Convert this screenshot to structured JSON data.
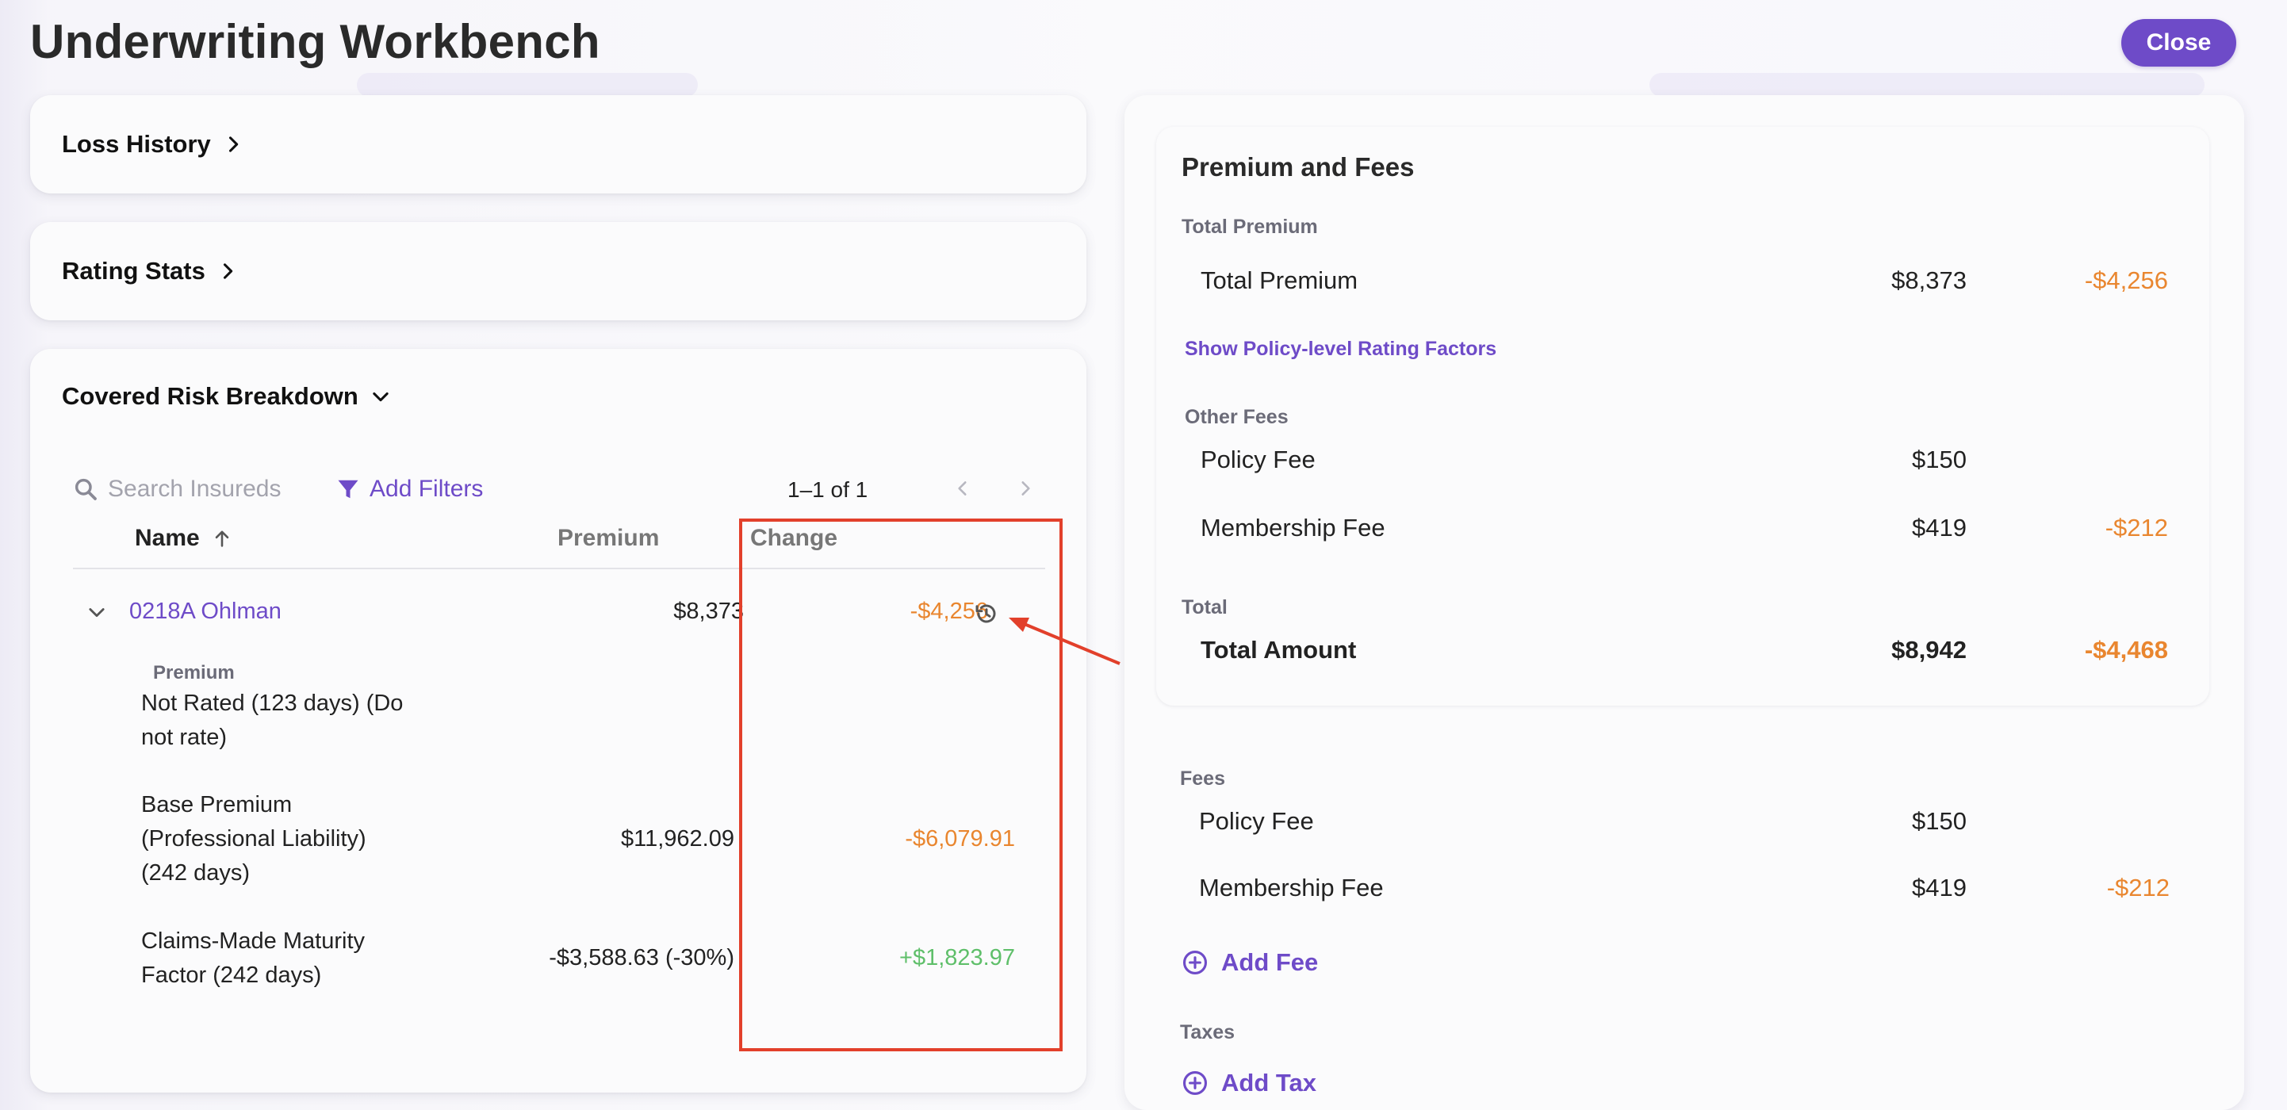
{
  "page": {
    "title": "Underwriting Workbench",
    "close_label": "Close"
  },
  "colors": {
    "accent": "#6e4bc8",
    "negative_change": "#e9862f",
    "positive_change": "#5fbf6a",
    "highlight": "#e2402b"
  },
  "left": {
    "loss_history": {
      "label": "Loss History",
      "icon": "chevron-right-icon"
    },
    "rating_stats": {
      "label": "Rating Stats",
      "icon": "chevron-right-icon"
    },
    "covered_risk": {
      "label": "Covered Risk Breakdown",
      "icon": "chevron-down-icon",
      "search_placeholder": "Search Insureds",
      "add_filters_label": "Add Filters",
      "pager_text": "1–1 of 1",
      "columns": {
        "name": "Name",
        "premium": "Premium",
        "change": "Change"
      },
      "row": {
        "name": "0218A Ohlman",
        "premium": "$8,373",
        "change": "-$4,256"
      },
      "section_label": "Premium",
      "details": [
        {
          "line1": "Not Rated (123 days) (Do",
          "line2": "not rate)",
          "line3": "",
          "premium": "",
          "change": ""
        },
        {
          "line1": "Base Premium",
          "line2": "(Professional Liability)",
          "line3": "(242 days)",
          "premium": "$11,962.09",
          "change": "-$6,079.91"
        },
        {
          "line1": "Claims-Made Maturity",
          "line2": "Factor (242 days)",
          "line3": "",
          "premium": "-$3,588.63 (-30%)",
          "change": "+$1,823.97"
        }
      ]
    }
  },
  "right": {
    "title": "Premium and Fees",
    "total_premium_label": "Total Premium",
    "total_premium": {
      "name": "Total Premium",
      "value": "$8,373",
      "change": "-$4,256"
    },
    "show_factors_link": "Show Policy-level Rating Factors",
    "other_fees_label": "Other Fees",
    "other_fees": [
      {
        "name": "Policy Fee",
        "value": "$150",
        "change": ""
      },
      {
        "name": "Membership Fee",
        "value": "$419",
        "change": "-$212"
      }
    ],
    "total_label": "Total",
    "total": {
      "name": "Total Amount",
      "value": "$8,942",
      "change": "-$4,468"
    },
    "fees_label": "Fees",
    "fees": [
      {
        "name": "Policy Fee",
        "value": "$150",
        "change": ""
      },
      {
        "name": "Membership Fee",
        "value": "$419",
        "change": "-$212"
      }
    ],
    "add_fee_label": "Add Fee",
    "taxes_label": "Taxes",
    "add_tax_label": "Add Tax"
  }
}
